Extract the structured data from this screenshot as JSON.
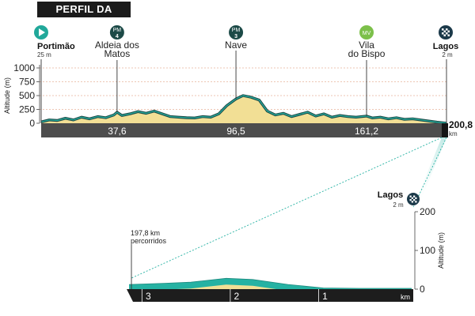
{
  "title": "PERFIL DA ETAPA",
  "colors": {
    "fill": "#f2df95",
    "line": "#1c4a47",
    "accent": "#26b2a3",
    "road": "#4d4d4d",
    "start": "#21a89a",
    "sprint": "#7cc04a"
  },
  "markers": [
    {
      "type": "start",
      "icon": "play-icon",
      "name": "Portimão",
      "sub": "25 m",
      "km": 0
    },
    {
      "type": "sprint",
      "icon_text": "PM",
      "number": "4",
      "name_line1": "Aldeia dos",
      "name_line2": "Matos",
      "km": 37.6
    },
    {
      "type": "sprint",
      "icon_text": "PM",
      "number": "3",
      "name_line1": "Nave",
      "km": 96.5
    },
    {
      "type": "intermediate",
      "icon_text": "MV",
      "name_line1": "Vila",
      "name_line2": "do Bispo",
      "km": 161.2
    },
    {
      "type": "finish",
      "icon": "checkered-flag-icon",
      "name": "Lagos",
      "sub": "2 m",
      "km": 200.8
    }
  ],
  "chart_data": [
    {
      "type": "area",
      "ylabel": "Altitude (m)",
      "yticks": [
        0,
        250,
        500,
        750,
        1000
      ],
      "ylim": [
        0,
        1000
      ],
      "xlim": [
        0,
        200.8
      ],
      "xticks": [
        "37,6",
        "96,5",
        "161,2"
      ],
      "xtick_values": [
        37.6,
        96.5,
        161.2
      ],
      "total_km": "200,8",
      "unit": "km",
      "x": [
        0,
        4,
        8,
        12,
        16,
        20,
        24,
        28,
        32,
        36,
        37.6,
        40,
        44,
        48,
        52,
        56,
        60,
        64,
        68,
        72,
        76,
        80,
        84,
        88,
        92,
        96.5,
        100,
        104,
        108,
        112,
        116,
        120,
        124,
        128,
        132,
        136,
        140,
        144,
        148,
        152,
        156,
        161.2,
        164,
        168,
        172,
        176,
        180,
        184,
        188,
        192,
        196,
        200.8
      ],
      "y": [
        25,
        60,
        50,
        90,
        60,
        110,
        80,
        120,
        100,
        150,
        200,
        140,
        170,
        210,
        180,
        220,
        170,
        120,
        110,
        100,
        95,
        120,
        110,
        170,
        320,
        440,
        500,
        470,
        420,
        220,
        150,
        180,
        120,
        160,
        200,
        130,
        170,
        110,
        140,
        120,
        110,
        130,
        95,
        110,
        80,
        100,
        70,
        80,
        60,
        40,
        20,
        2
      ]
    },
    {
      "type": "area",
      "ylabel": "Altitude (m)",
      "yticks": [
        0,
        100,
        200
      ],
      "ylim": [
        0,
        200
      ],
      "xticks": [
        "3",
        "2",
        "1"
      ],
      "xtick_values": [
        3,
        2,
        1
      ],
      "xlim": [
        3.2,
        0
      ],
      "unit": "km",
      "annotation_line1": "197,8 km",
      "annotation_line2": "percorridos",
      "finish_name": "Lagos",
      "finish_sub": "2 m",
      "x": [
        3.2,
        2.8,
        2.5,
        2.1,
        1.8,
        1.4,
        1.0,
        0.6,
        0.3,
        0
      ],
      "y": [
        12,
        15,
        18,
        28,
        25,
        12,
        3,
        2,
        2,
        2
      ]
    }
  ]
}
